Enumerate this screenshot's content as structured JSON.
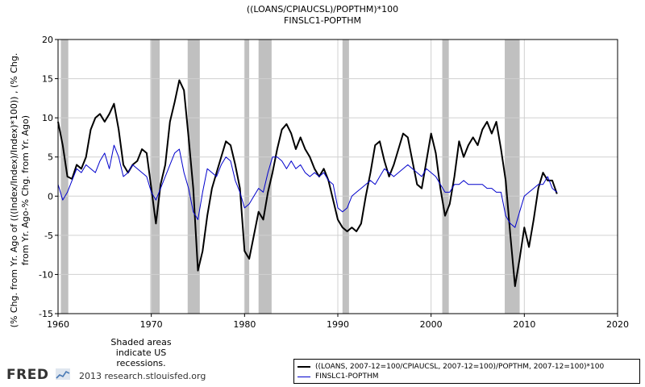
{
  "chart_data": {
    "type": "line",
    "title": "((LOANS/CPIAUCSL)/POPTHM)*100",
    "subtitle": "FINSLC1-POPTHM",
    "ylabel_line1": "(% Chg. from Yr. Ago of (((Index/Index)/Index)*100)) , (% Chg.",
    "ylabel_line2": "from Yr. Ago-% Chg. from Yr. Ago)",
    "xlim": [
      1960,
      2020
    ],
    "ylim": [
      -15,
      20
    ],
    "x_ticks": [
      1960,
      1970,
      1980,
      1990,
      2000,
      2010,
      2020
    ],
    "y_ticks": [
      -15,
      -10,
      -5,
      0,
      5,
      10,
      15,
      20
    ],
    "grid": true,
    "recessions": [
      [
        1960.3,
        1961.1
      ],
      [
        1969.9,
        1970.9
      ],
      [
        1973.9,
        1975.2
      ],
      [
        1980.0,
        1980.5
      ],
      [
        1981.5,
        1982.9
      ],
      [
        1990.5,
        1991.2
      ],
      [
        2001.2,
        2001.9
      ],
      [
        2007.9,
        2009.5
      ]
    ],
    "series": [
      {
        "name": "((LOANS, 2007-12=100/CPIAUCSL, 2007-12=100)/POPTHM, 2007-12=100)*100",
        "color": "#000000",
        "x": [
          1960.0,
          1960.5,
          1961.0,
          1961.5,
          1962.0,
          1962.5,
          1963.0,
          1963.5,
          1964.0,
          1964.5,
          1965.0,
          1965.5,
          1966.0,
          1966.5,
          1967.0,
          1967.5,
          1968.0,
          1968.5,
          1969.0,
          1969.5,
          1970.0,
          1970.5,
          1971.0,
          1971.5,
          1972.0,
          1972.5,
          1973.0,
          1973.5,
          1974.0,
          1974.5,
          1975.0,
          1975.5,
          1976.0,
          1976.5,
          1977.0,
          1977.5,
          1978.0,
          1978.5,
          1979.0,
          1979.5,
          1980.0,
          1980.5,
          1981.0,
          1981.5,
          1982.0,
          1982.5,
          1983.0,
          1983.5,
          1984.0,
          1984.5,
          1985.0,
          1985.5,
          1986.0,
          1986.5,
          1987.0,
          1987.5,
          1988.0,
          1988.5,
          1989.0,
          1989.5,
          1990.0,
          1990.5,
          1991.0,
          1991.5,
          1992.0,
          1992.5,
          1993.0,
          1993.5,
          1994.0,
          1994.5,
          1995.0,
          1995.5,
          1996.0,
          1996.5,
          1997.0,
          1997.5,
          1998.0,
          1998.5,
          1999.0,
          1999.5,
          2000.0,
          2000.5,
          2001.0,
          2001.5,
          2002.0,
          2002.5,
          2003.0,
          2003.5,
          2004.0,
          2004.5,
          2005.0,
          2005.5,
          2006.0,
          2006.5,
          2007.0,
          2007.5,
          2008.0,
          2008.5,
          2009.0,
          2009.5,
          2010.0,
          2010.5,
          2011.0,
          2011.5,
          2012.0,
          2012.5,
          2013.0,
          2013.5
        ],
        "values": [
          9.5,
          6.5,
          2.5,
          2.2,
          4.0,
          3.5,
          5.0,
          8.5,
          10.0,
          10.5,
          9.5,
          10.5,
          11.8,
          8.5,
          4.0,
          3.0,
          4.0,
          4.5,
          6.0,
          5.5,
          1.0,
          -3.5,
          1.5,
          4.0,
          9.5,
          12.0,
          14.8,
          13.5,
          7.5,
          1.0,
          -9.5,
          -7.0,
          -2.5,
          1.0,
          3.0,
          5.0,
          7.0,
          6.5,
          4.0,
          1.0,
          -7.0,
          -8.0,
          -5.0,
          -2.0,
          -3.0,
          0.5,
          3.0,
          6.0,
          8.5,
          9.2,
          8.0,
          6.0,
          7.5,
          6.0,
          5.0,
          3.5,
          2.5,
          3.5,
          2.0,
          -0.5,
          -3.0,
          -4.0,
          -4.5,
          -4.0,
          -4.5,
          -3.5,
          0.0,
          3.0,
          6.5,
          7.0,
          4.5,
          2.5,
          4.0,
          6.0,
          8.0,
          7.5,
          4.5,
          1.5,
          1.0,
          4.5,
          8.0,
          5.5,
          1.0,
          -2.5,
          -1.0,
          2.5,
          7.0,
          5.0,
          6.5,
          7.5,
          6.5,
          8.5,
          9.5,
          8.0,
          9.5,
          6.0,
          2.0,
          -5.0,
          -11.5,
          -8.0,
          -4.0,
          -6.5,
          -3.0,
          1.0,
          3.0,
          2.0,
          2.0,
          0.3
        ]
      },
      {
        "name": "FINSLC1-POPTHM",
        "color": "#0000cc",
        "x": [
          1960.0,
          1960.5,
          1961.0,
          1961.5,
          1962.0,
          1962.5,
          1963.0,
          1963.5,
          1964.0,
          1964.5,
          1965.0,
          1965.5,
          1966.0,
          1966.5,
          1967.0,
          1967.5,
          1968.0,
          1968.5,
          1969.0,
          1969.5,
          1970.0,
          1970.5,
          1971.0,
          1971.5,
          1972.0,
          1972.5,
          1973.0,
          1973.5,
          1974.0,
          1974.5,
          1975.0,
          1975.5,
          1976.0,
          1976.5,
          1977.0,
          1977.5,
          1978.0,
          1978.5,
          1979.0,
          1979.5,
          1980.0,
          1980.5,
          1981.0,
          1981.5,
          1982.0,
          1982.5,
          1983.0,
          1983.5,
          1984.0,
          1984.5,
          1985.0,
          1985.5,
          1986.0,
          1986.5,
          1987.0,
          1987.5,
          1988.0,
          1988.5,
          1989.0,
          1989.5,
          1990.0,
          1990.5,
          1991.0,
          1991.5,
          1992.0,
          1992.5,
          1993.0,
          1993.5,
          1994.0,
          1994.5,
          1995.0,
          1995.5,
          1996.0,
          1996.5,
          1997.0,
          1997.5,
          1998.0,
          1998.5,
          1999.0,
          1999.5,
          2000.0,
          2000.5,
          2001.0,
          2001.5,
          2002.0,
          2002.5,
          2003.0,
          2003.5,
          2004.0,
          2004.5,
          2005.0,
          2005.5,
          2006.0,
          2006.5,
          2007.0,
          2007.5,
          2008.0,
          2008.5,
          2009.0,
          2009.5,
          2010.0,
          2010.5,
          2011.0,
          2011.5,
          2012.0,
          2012.5,
          2013.0,
          2013.5
        ],
        "values": [
          1.5,
          -0.5,
          0.5,
          2.0,
          3.5,
          3.0,
          4.0,
          3.5,
          3.0,
          4.5,
          5.5,
          3.5,
          6.5,
          5.0,
          2.5,
          3.0,
          4.0,
          3.5,
          3.0,
          2.5,
          0.5,
          -0.5,
          1.0,
          2.5,
          4.0,
          5.5,
          6.0,
          3.0,
          1.0,
          -2.0,
          -3.0,
          0.5,
          3.5,
          3.0,
          2.5,
          4.0,
          5.0,
          4.5,
          2.0,
          0.5,
          -1.5,
          -1.0,
          0.0,
          1.0,
          0.5,
          3.0,
          5.0,
          5.0,
          4.5,
          3.5,
          4.5,
          3.5,
          4.0,
          3.0,
          2.5,
          3.0,
          2.5,
          3.0,
          2.0,
          1.5,
          -1.5,
          -2.0,
          -1.5,
          0.0,
          0.5,
          1.0,
          1.5,
          2.0,
          1.5,
          2.5,
          3.5,
          3.0,
          2.5,
          3.0,
          3.5,
          4.0,
          3.5,
          3.0,
          2.5,
          3.5,
          3.0,
          2.5,
          1.5,
          0.5,
          0.5,
          1.5,
          1.5,
          2.0,
          1.5,
          1.5,
          1.5,
          1.5,
          1.0,
          1.0,
          0.5,
          0.5,
          -2.5,
          -3.5,
          -4.0,
          -2.0,
          0.0,
          0.5,
          1.0,
          1.5,
          1.5,
          2.5,
          1.0,
          0.5
        ]
      }
    ]
  },
  "footer": {
    "recession_note": "Shaded areas indicate US recessions.",
    "logo": "FRED",
    "copyright": "2013 research.stlouisfed.org"
  }
}
